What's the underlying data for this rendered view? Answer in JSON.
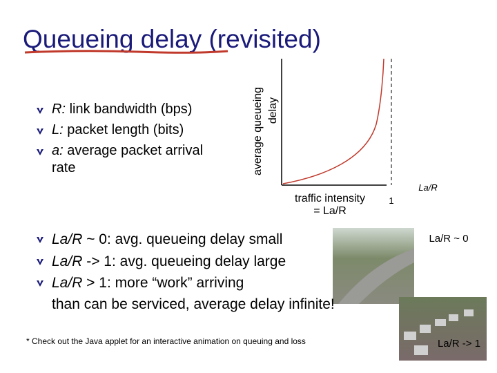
{
  "header": {
    "title": "Queueing delay (revisited)"
  },
  "bullets_top": [
    {
      "term": "R:",
      "text": "link bandwidth (bps)"
    },
    {
      "term": "L:",
      "text": "packet length (bits)"
    },
    {
      "term": "a:",
      "text": "average packet arrival rate"
    }
  ],
  "graph": {
    "y_label": [
      "average queueing",
      "delay"
    ],
    "x_label": [
      "traffic intensity",
      "= La/R"
    ],
    "tick": "1",
    "end_label": "La/R"
  },
  "bullets_bottom": [
    {
      "term": "La/R",
      "text": "~ 0: avg. queueing delay small"
    },
    {
      "term": "La/R",
      "text": "-> 1: avg. queueing delay large"
    },
    {
      "term": "La/R",
      "text": "> 1: more “work” arriving",
      "continuation": "than can be serviced, average delay infinite!"
    }
  ],
  "images": [
    {
      "label": "La/R ~ 0"
    },
    {
      "label": "La/R -> 1"
    }
  ],
  "footnote": "* Check out the Java applet for an interactive animation on queuing and loss"
}
